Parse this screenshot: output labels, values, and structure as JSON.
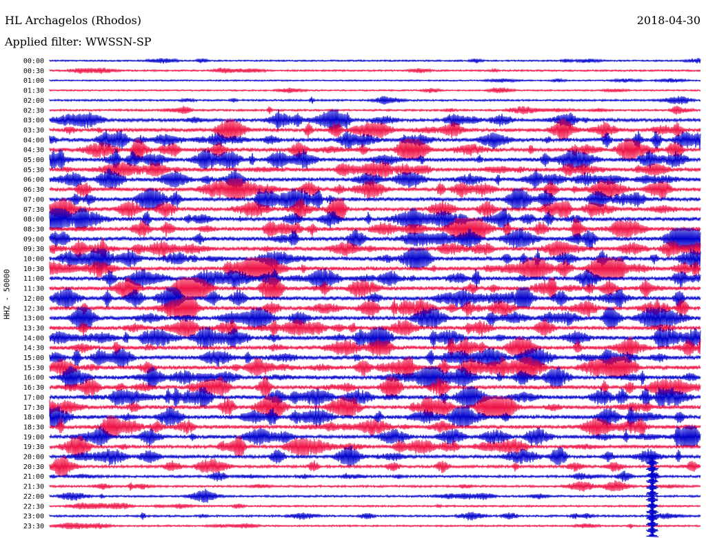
{
  "header": {
    "station": "HL Archagelos (Rhodos)",
    "date": "2018-04-30",
    "filter": "Applied filter: WWSSN-SP"
  },
  "chart_data": {
    "type": "line",
    "ylabel": "HHZ - 50000",
    "series_colors": [
      "#0000cc",
      "#ee1144"
    ],
    "color_order": "alternating blue/red per trace, starting blue at 00:00",
    "tick_labels": [
      "00:00",
      "00:30",
      "01:00",
      "01:30",
      "02:00",
      "02:30",
      "03:00",
      "03:30",
      "04:00",
      "04:30",
      "05:00",
      "05:30",
      "06:00",
      "06:30",
      "07:00",
      "07:30",
      "08:00",
      "08:30",
      "09:00",
      "09:30",
      "10:00",
      "10:30",
      "11:00",
      "11:30",
      "12:00",
      "12:30",
      "13:00",
      "13:30",
      "14:00",
      "14:30",
      "15:00",
      "15:30",
      "16:00",
      "16:30",
      "17:00",
      "17:30",
      "18:00",
      "18:30",
      "19:00",
      "19:30",
      "20:00",
      "20:30",
      "21:00",
      "21:30",
      "22:00",
      "22:30",
      "23:00",
      "23:30"
    ],
    "trace_activity": [
      0.15,
      0.2,
      0.08,
      0.12,
      0.25,
      0.3,
      0.7,
      0.8,
      0.85,
      0.9,
      0.9,
      0.9,
      0.9,
      0.9,
      0.9,
      0.9,
      0.95,
      0.95,
      0.95,
      0.95,
      0.95,
      0.95,
      0.95,
      0.95,
      0.95,
      0.95,
      0.95,
      0.95,
      0.95,
      0.95,
      0.95,
      0.95,
      0.95,
      0.95,
      0.95,
      0.9,
      0.9,
      0.85,
      0.8,
      0.75,
      0.7,
      0.55,
      0.45,
      0.35,
      0.3,
      0.25,
      0.3,
      0.2
    ],
    "minutes_per_line": 30,
    "grid": false
  }
}
